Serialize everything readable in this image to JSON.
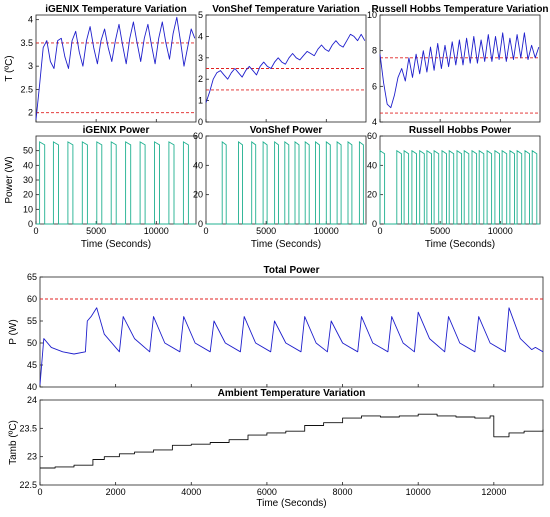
{
  "chart_data": [
    {
      "id": "igenix-temp",
      "type": "line",
      "title": "iGENIX Temperature Variation",
      "xlabel": "",
      "ylabel": "T (ºC)",
      "xlim": [
        0,
        13300
      ],
      "ylim": [
        1.8,
        4.1
      ],
      "yticks": [
        2,
        2.5,
        3,
        3.5,
        4
      ],
      "ytick_labels": [
        "2",
        "2.5",
        "3",
        "3.5",
        "4"
      ],
      "xticks": [
        0,
        5000,
        10000
      ],
      "xtick_labels": [],
      "series": [
        {
          "color": "#1f1fcc",
          "x": [
            0,
            300,
            600,
            900,
            1200,
            1500,
            1800,
            2100,
            2400,
            2700,
            3000,
            3300,
            3600,
            3900,
            4200,
            4500,
            4800,
            5100,
            5400,
            5700,
            6000,
            6300,
            6600,
            6900,
            7200,
            7500,
            7800,
            8100,
            8400,
            8700,
            9000,
            9300,
            9600,
            9900,
            10200,
            10500,
            10800,
            11100,
            11400,
            11700,
            12000,
            12300,
            12600,
            12900,
            13200
          ],
          "y": [
            1.85,
            2.6,
            3.4,
            3.55,
            3.1,
            2.95,
            3.55,
            3.6,
            3.2,
            2.95,
            3.55,
            3.75,
            3.3,
            3.0,
            3.55,
            3.85,
            3.4,
            3.05,
            3.55,
            3.8,
            3.4,
            3.1,
            3.55,
            3.9,
            3.45,
            3.05,
            3.6,
            3.95,
            3.5,
            3.1,
            3.6,
            3.9,
            3.45,
            3.05,
            3.6,
            3.95,
            3.5,
            3.15,
            3.7,
            4.05,
            3.55,
            3.0,
            3.4,
            3.8,
            3.6
          ]
        }
      ],
      "ref_lines": [
        {
          "y": 3.5,
          "color": "#e02020",
          "style": "dashed"
        },
        {
          "y": 2.0,
          "color": "#e02020",
          "style": "dashed"
        }
      ]
    },
    {
      "id": "vonshef-temp",
      "type": "line",
      "title": "VonShef Temperature Variation",
      "xlabel": "",
      "ylabel": "",
      "xlim": [
        0,
        13300
      ],
      "ylim": [
        0,
        5
      ],
      "yticks": [
        0,
        1,
        2,
        3,
        4,
        5
      ],
      "ytick_labels": [
        "0",
        "1",
        "2",
        "3",
        "4",
        "5"
      ],
      "xticks": [
        0,
        5000,
        10000
      ],
      "xtick_labels": [],
      "series": [
        {
          "color": "#1f1fcc",
          "x": [
            0,
            300,
            600,
            900,
            1200,
            1500,
            1800,
            2100,
            2400,
            2700,
            3000,
            3300,
            3600,
            3900,
            4200,
            4500,
            4800,
            5100,
            5400,
            5700,
            6000,
            6300,
            6600,
            6900,
            7200,
            7500,
            7800,
            8100,
            8400,
            8700,
            9000,
            9300,
            9600,
            9900,
            10200,
            10500,
            10800,
            11100,
            11400,
            11700,
            12000,
            12300,
            12600,
            12900,
            13200
          ],
          "y": [
            0.9,
            1.4,
            2.0,
            2.3,
            2.4,
            2.2,
            2.0,
            2.3,
            2.5,
            2.3,
            2.1,
            2.4,
            2.6,
            2.4,
            2.2,
            2.6,
            2.8,
            2.6,
            2.5,
            2.8,
            3.0,
            2.8,
            2.7,
            3.0,
            3.2,
            3.0,
            2.9,
            3.1,
            3.3,
            3.2,
            3.1,
            3.4,
            3.6,
            3.4,
            3.3,
            3.6,
            3.8,
            3.6,
            3.5,
            3.8,
            4.1,
            4.0,
            3.8,
            4.1,
            3.8
          ]
        }
      ],
      "ref_lines": [
        {
          "y": 2.5,
          "color": "#e02020",
          "style": "dashed"
        },
        {
          "y": 1.5,
          "color": "#e02020",
          "style": "dashed"
        }
      ]
    },
    {
      "id": "russell-temp",
      "type": "line",
      "title": "Russell Hobbs Temperature Variation",
      "xlabel": "",
      "ylabel": "",
      "xlim": [
        0,
        13300
      ],
      "ylim": [
        4,
        10
      ],
      "yticks": [
        4,
        6,
        8,
        10
      ],
      "ytick_labels": [
        "4",
        "6",
        "8",
        "10"
      ],
      "xticks": [
        0,
        5000,
        10000
      ],
      "xtick_labels": [],
      "series": [
        {
          "color": "#1f1fcc",
          "x": [
            0,
            300,
            600,
            900,
            1200,
            1500,
            1800,
            2100,
            2400,
            2700,
            3000,
            3300,
            3600,
            3900,
            4200,
            4500,
            4800,
            5100,
            5400,
            5700,
            6000,
            6300,
            6600,
            6900,
            7200,
            7500,
            7800,
            8100,
            8400,
            8700,
            9000,
            9300,
            9600,
            9900,
            10200,
            10500,
            10800,
            11100,
            11400,
            11700,
            12000,
            12300,
            12600,
            12900,
            13200
          ],
          "y": [
            7.8,
            6.2,
            5.0,
            4.8,
            5.5,
            6.5,
            7.0,
            6.3,
            7.6,
            6.5,
            7.8,
            6.7,
            8.0,
            6.8,
            8.2,
            6.9,
            8.4,
            7.0,
            8.3,
            7.1,
            8.5,
            7.2,
            8.6,
            7.2,
            8.7,
            7.3,
            8.8,
            7.3,
            8.6,
            7.4,
            8.9,
            7.4,
            8.8,
            7.5,
            9.0,
            7.4,
            8.7,
            7.5,
            8.9,
            7.6,
            9.0,
            7.5,
            8.3,
            7.6,
            8.2
          ]
        }
      ],
      "ref_lines": [
        {
          "y": 7.6,
          "color": "#e02020",
          "style": "dashed"
        },
        {
          "y": 4.5,
          "color": "#e02020",
          "style": "dashed"
        }
      ]
    },
    {
      "id": "igenix-power",
      "type": "line",
      "title": "iGENIX Power",
      "xlabel": "Time (Seconds)",
      "ylabel": "Power (W)",
      "xlim": [
        0,
        13300
      ],
      "ylim": [
        0,
        60
      ],
      "yticks": [
        0,
        10,
        20,
        30,
        40,
        50
      ],
      "ytick_labels": [
        "0",
        "10",
        "20",
        "30",
        "40",
        "50"
      ],
      "xticks": [
        0,
        5000,
        10000
      ],
      "xtick_labels": [
        "0",
        "5000",
        "10000"
      ],
      "pulses": {
        "color": "#20b090",
        "starts": [
          300,
          1450,
          2650,
          3850,
          5050,
          6250,
          7450,
          8650,
          9850,
          11050,
          12250
        ],
        "width": 420,
        "high": 56,
        "low": 0,
        "spike_start": 1500,
        "spike_width": 500,
        "spike_high": 52
      }
    },
    {
      "id": "vonshef-power",
      "type": "line",
      "title": "VonShef Power",
      "xlabel": "Time (Seconds)",
      "ylabel": "",
      "xlim": [
        0,
        13300
      ],
      "ylim": [
        0,
        60
      ],
      "yticks": [
        0,
        20,
        40,
        60
      ],
      "ytick_labels": [
        "0",
        "20",
        "40",
        "60"
      ],
      "xticks": [
        0,
        5000,
        10000
      ],
      "xtick_labels": [
        "0",
        "5000",
        "10000"
      ],
      "pulses": {
        "color": "#20b090",
        "starts": [
          1350,
          2700,
          3800,
          4750,
          5700,
          6550,
          7400,
          8250,
          9100,
          10000,
          10900,
          11800,
          12750
        ],
        "width": 330,
        "high": 56,
        "low": 0
      }
    },
    {
      "id": "russell-power",
      "type": "line",
      "title": "Russell Hobbs Power",
      "xlabel": "Time (Seconds)",
      "ylabel": "",
      "xlim": [
        0,
        13300
      ],
      "ylim": [
        0,
        60
      ],
      "yticks": [
        0,
        20,
        40,
        60
      ],
      "ytick_labels": [
        "0",
        "20",
        "40",
        "60"
      ],
      "xticks": [
        0,
        5000,
        10000
      ],
      "xtick_labels": [
        "0",
        "5000",
        "10000"
      ],
      "pulses": {
        "color": "#20b090",
        "starts": [
          0,
          1400,
          2000,
          2650,
          3300,
          3900,
          4500,
          5150,
          5750,
          6400,
          7000,
          7650,
          8250,
          8900,
          9550,
          10150,
          10800,
          11400,
          12050,
          12650
        ],
        "width": 380,
        "high": 50,
        "low": 0
      }
    },
    {
      "id": "total-power",
      "type": "line",
      "title": "Total Power",
      "xlabel": "",
      "ylabel": "P (W)",
      "xlim": [
        0,
        13300
      ],
      "ylim": [
        40,
        65
      ],
      "yticks": [
        40,
        45,
        50,
        55,
        60,
        65
      ],
      "ytick_labels": [
        "40",
        "45",
        "50",
        "55",
        "60",
        "65"
      ],
      "xticks": [
        0,
        2000,
        4000,
        6000,
        8000,
        10000,
        12000
      ],
      "xtick_labels": [],
      "series": [
        {
          "color": "#1f1fcc",
          "x": [
            0,
            100,
            300,
            600,
            900,
            1200,
            1250,
            1350,
            1500,
            1700,
            2100,
            2200,
            2500,
            2900,
            3000,
            3300,
            3700,
            3800,
            4100,
            4500,
            4600,
            4900,
            5300,
            5400,
            5700,
            6100,
            6200,
            6500,
            6900,
            7000,
            7300,
            7600,
            7700,
            8000,
            8400,
            8500,
            8800,
            9200,
            9300,
            9600,
            9900,
            10000,
            10300,
            10700,
            10800,
            11100,
            11500,
            11600,
            11900,
            12300,
            12400,
            12700,
            13000,
            13100,
            13300
          ],
          "y": [
            40.5,
            51,
            49,
            48,
            47.5,
            48,
            55,
            56,
            58,
            52,
            48,
            56,
            51,
            48,
            56,
            50,
            48,
            56,
            50,
            48,
            55,
            50,
            48,
            56,
            50,
            48,
            55,
            50,
            48,
            56,
            50,
            48,
            55,
            50,
            48,
            56,
            50,
            48,
            56,
            50,
            48,
            57,
            51,
            48,
            56,
            50,
            48,
            56,
            50,
            48,
            58,
            51,
            48.5,
            49,
            48
          ]
        }
      ],
      "ref_lines": [
        {
          "y": 60,
          "color": "#e02020",
          "style": "dashed"
        }
      ]
    },
    {
      "id": "ambient-temp",
      "type": "line",
      "title": "Ambient Temperature Variation",
      "xlabel": "Time (Seconds)",
      "ylabel": "Tamb (ºC)",
      "xlim": [
        0,
        13300
      ],
      "ylim": [
        22.5,
        24
      ],
      "yticks": [
        22.5,
        23,
        23.5,
        24
      ],
      "ytick_labels": [
        "22.5",
        "23",
        "23.5",
        "24"
      ],
      "xticks": [
        0,
        2000,
        4000,
        6000,
        8000,
        10000,
        12000
      ],
      "xtick_labels": [
        "0",
        "2000",
        "4000",
        "6000",
        "8000",
        "10000",
        "12000"
      ],
      "series": [
        {
          "color": "#111111",
          "step": true,
          "x": [
            0,
            400,
            900,
            1400,
            1700,
            2100,
            2500,
            3000,
            3500,
            4000,
            4500,
            5000,
            5500,
            6000,
            6500,
            7000,
            7500,
            8000,
            8500,
            9000,
            9500,
            10000,
            10500,
            11000,
            11500,
            11900,
            12000,
            12400,
            12800,
            13300
          ],
          "y": [
            22.8,
            22.82,
            22.85,
            22.95,
            23.0,
            23.05,
            23.08,
            23.12,
            23.2,
            23.22,
            23.25,
            23.3,
            23.38,
            23.42,
            23.45,
            23.55,
            23.6,
            23.68,
            23.72,
            23.7,
            23.72,
            23.75,
            23.72,
            23.7,
            23.68,
            23.72,
            23.35,
            23.42,
            23.45,
            23.48
          ]
        }
      ]
    }
  ]
}
